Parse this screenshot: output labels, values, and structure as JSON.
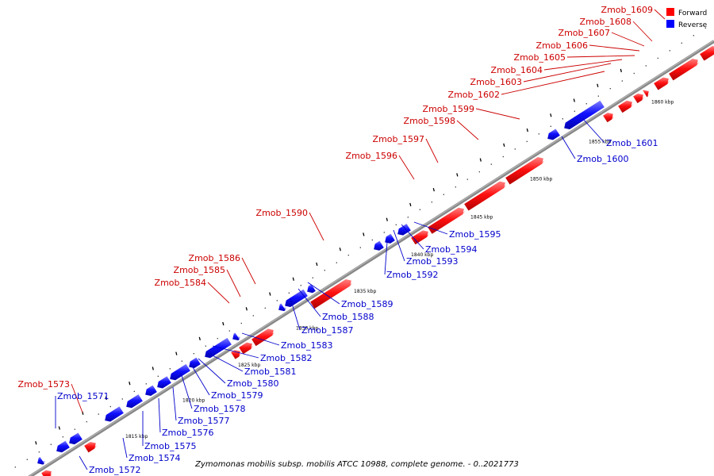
{
  "caption": "Zymomonas mobilis subsp. mobilis ATCC 10988, complete genome. - 0..2021773",
  "legend": {
    "forward": {
      "label": "Forward",
      "color": "#ff0000"
    },
    "reverse": {
      "label": "Reverse",
      "color": "#0000ff"
    }
  },
  "ticks": [
    "1815 kbp",
    "1820 kbp",
    "1825 kbp",
    "1830 kbp",
    "1835 kbp",
    "1840 kbp",
    "1845 kbp",
    "1850 kbp",
    "1855 kbp",
    "1860 kbp"
  ],
  "forward_labels": [
    "Zmob_1573",
    "Zmob_1584",
    "Zmob_1585",
    "Zmob_1586",
    "Zmob_1590",
    "Zmob_1596",
    "Zmob_1597",
    "Zmob_1598",
    "Zmob_1599",
    "Zmob_1602",
    "Zmob_1603",
    "Zmob_1604",
    "Zmob_1605",
    "Zmob_1606",
    "Zmob_1607",
    "Zmob_1608",
    "Zmob_1609"
  ],
  "reverse_labels": [
    "Zmob_1571",
    "Zmob_1572",
    "Zmob_1574",
    "Zmob_1575",
    "Zmob_1576",
    "Zmob_1577",
    "Zmob_1578",
    "Zmob_1579",
    "Zmob_1580",
    "Zmob_1581",
    "Zmob_1582",
    "Zmob_1583",
    "Zmob_1587",
    "Zmob_1588",
    "Zmob_1589",
    "Zmob_1592",
    "Zmob_1593",
    "Zmob_1594",
    "Zmob_1595",
    "Zmob_1600",
    "Zmob_1601"
  ]
}
